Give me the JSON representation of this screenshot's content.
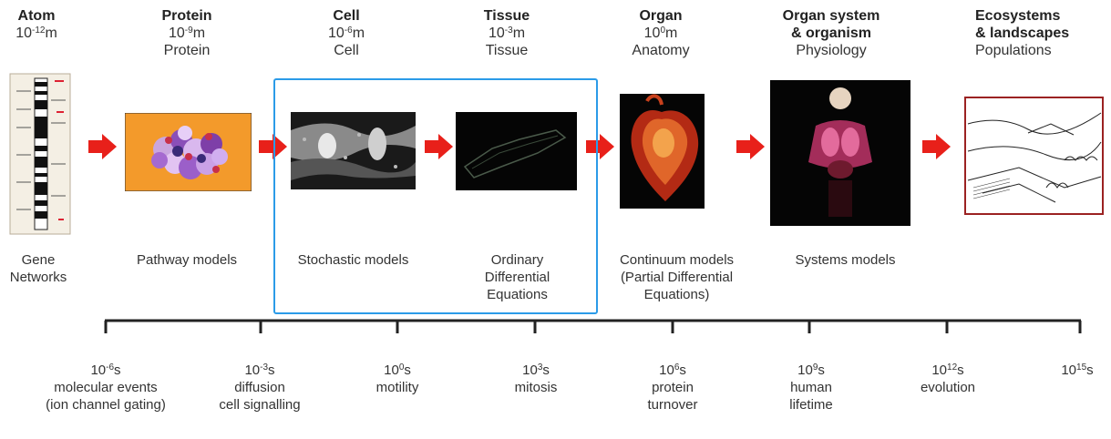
{
  "levels": [
    {
      "title": "Atom",
      "base": "10",
      "exp": "-12",
      "unit": "m",
      "sub": ""
    },
    {
      "title": "Protein",
      "base": "10",
      "exp": "-9",
      "unit": "m",
      "sub": "Protein"
    },
    {
      "title": "Cell",
      "base": "10",
      "exp": "-6",
      "unit": "m",
      "sub": "Cell"
    },
    {
      "title": "Tissue",
      "base": "10",
      "exp": "-3",
      "unit": "m",
      "sub": "Tissue"
    },
    {
      "title": "Organ",
      "base": "10",
      "exp": "0",
      "unit": "m",
      "sub": "Anatomy"
    },
    {
      "title": "Organ system",
      "title2": "& organism",
      "sub": "Physiology"
    },
    {
      "title": "Ecosystems",
      "title2": "& landscapes",
      "sub": "Populations"
    }
  ],
  "models": [
    "Gene\nNetworks",
    "Pathway models",
    "Stochastic models",
    "Ordinary\nDifferential\nEquations",
    "Continuum models\n(Partial Differential\nEquations)",
    "Systems models"
  ],
  "timescale": [
    {
      "base": "10",
      "exp": "-6",
      "unit": "s",
      "label": "molecular events\n(ion channel gating)"
    },
    {
      "base": "10",
      "exp": "-3",
      "unit": "s",
      "label": "diffusion\ncell signalling"
    },
    {
      "base": "10",
      "exp": "0",
      "unit": "s",
      "label": "motility"
    },
    {
      "base": "10",
      "exp": "3",
      "unit": "s",
      "label": "mitosis"
    },
    {
      "base": "10",
      "exp": "6",
      "unit": "s",
      "label": "protein\nturnover"
    },
    {
      "base": "10",
      "exp": "9",
      "unit": "s",
      "label": "human\nlifetime"
    },
    {
      "base": "10",
      "exp": "12",
      "unit": "s",
      "label": "evolution"
    },
    {
      "base": "10",
      "exp": "15",
      "unit": "s",
      "label": ""
    }
  ],
  "colors": {
    "arrow": "#e8201a",
    "highlight": "#2b9be8",
    "ecosystem_frame": "#9b2222",
    "axis": "#222222"
  },
  "icons": [
    "chromosome-image",
    "protein-image",
    "cell-image",
    "tissue-image",
    "heart-image",
    "organism-image",
    "landscape-image"
  ]
}
